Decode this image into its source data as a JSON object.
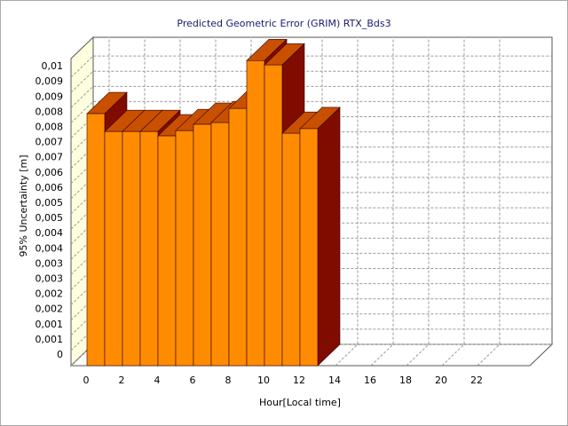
{
  "chart_data": {
    "type": "bar3d",
    "title": "Predicted Geometric Error (GRIM) RTX_Bds3",
    "xlabel": "Hour[Local time]",
    "ylabel": "95% Uncertainty [m]",
    "x": [
      0,
      1,
      2,
      3,
      4,
      5,
      6,
      7,
      8,
      9,
      10,
      11,
      12
    ],
    "values": [
      0.00874,
      0.00812,
      0.00812,
      0.00812,
      0.00797,
      0.00815,
      0.00837,
      0.00843,
      0.00892,
      0.01058,
      0.01043,
      0.00806,
      0.00822
    ],
    "colors": {
      "front": "#ff8c00",
      "top": "#c85000",
      "side": "#800c00"
    },
    "xlim": [
      -0.9,
      24.95
    ],
    "xticks": [
      0,
      2,
      4,
      6,
      8,
      10,
      12,
      14,
      16,
      18,
      20,
      22
    ],
    "ylim": [
      0,
      0.01065
    ],
    "yticks": [
      0,
      {
        "value": 0.000526,
        "label": "0,001"
      },
      {
        "value": 0.001053,
        "label": "0,001"
      },
      {
        "value": 0.001579,
        "label": "0,002"
      },
      {
        "value": 0.002105,
        "label": "0,002"
      },
      {
        "value": 0.002632,
        "label": "0,003"
      },
      {
        "value": 0.003158,
        "label": "0,003"
      },
      {
        "value": 0.003684,
        "label": "0,004"
      },
      {
        "value": 0.004211,
        "label": "0,004"
      },
      {
        "value": 0.004737,
        "label": "0,005"
      },
      {
        "value": 0.005263,
        "label": "0,005"
      },
      {
        "value": 0.005789,
        "label": "0,006"
      },
      {
        "value": 0.006316,
        "label": "0,006"
      },
      {
        "value": 0.006842,
        "label": "0,007"
      },
      {
        "value": 0.007368,
        "label": "0,007"
      },
      {
        "value": 0.007895,
        "label": "0,008"
      },
      {
        "value": 0.008421,
        "label": "0,008"
      },
      {
        "value": 0.008947,
        "label": "0,009"
      },
      {
        "value": 0.009474,
        "label": "0,009"
      },
      {
        "value": 0.01,
        "label": "0,01"
      }
    ],
    "grid": true
  }
}
